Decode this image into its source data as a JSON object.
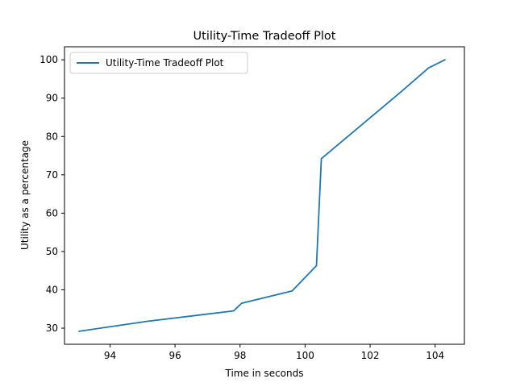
{
  "chart_data": {
    "type": "line",
    "title": "Utility-Time Tradeoff Plot",
    "xlabel": "Time in seconds",
    "ylabel": "Utility as a percentage",
    "xlim": [
      92.6,
      104.9
    ],
    "ylim": [
      25.8,
      103.4
    ],
    "xticks": [
      94,
      96,
      98,
      100,
      102,
      104
    ],
    "yticks": [
      30,
      40,
      50,
      60,
      70,
      80,
      90,
      100
    ],
    "grid": false,
    "legend_position": "upper-left",
    "series": [
      {
        "name": "Utility-Time Tradeoff Plot",
        "color": "#1f77b4",
        "x": [
          93.05,
          95.15,
          97.8,
          98.05,
          99.6,
          100.35,
          100.5,
          103.0,
          103.8,
          104.3
        ],
        "y": [
          29.2,
          31.8,
          34.5,
          36.5,
          39.7,
          46.3,
          74.2,
          92.0,
          97.9,
          100.0
        ]
      }
    ]
  }
}
